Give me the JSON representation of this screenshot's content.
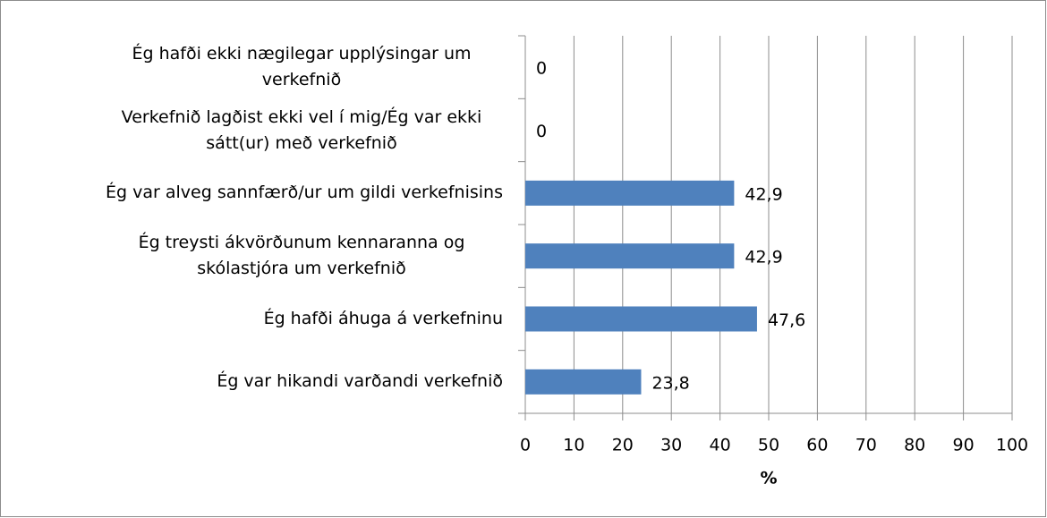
{
  "chart_data": {
    "type": "barh",
    "categories": [
      "Ég hafði ekki nægilegar upplýsingar um verkefnið",
      "Verkefnið lagðist ekki vel í mig/Ég var ekki sátt(ur) með verkefnið",
      "Ég var alveg sannfærð/ur um gildi verkefnisins",
      "Ég treysti ákvörðunum kennaranna og skólastjóra um verkefnið",
      "Ég hafði áhuga á verkefninu",
      "Ég var hikandi varðandi verkefnið"
    ],
    "values": [
      0,
      0,
      42.9,
      42.9,
      47.6,
      23.8
    ],
    "value_labels": [
      "0",
      "0",
      "42,9",
      "42,9",
      "47,6",
      "23,8"
    ],
    "color": "#4f81bd",
    "x_label": "%",
    "xlim": [
      0,
      100
    ],
    "xticks": [
      0,
      10,
      20,
      30,
      40,
      50,
      60,
      70,
      80,
      90,
      100
    ],
    "grid": true
  }
}
